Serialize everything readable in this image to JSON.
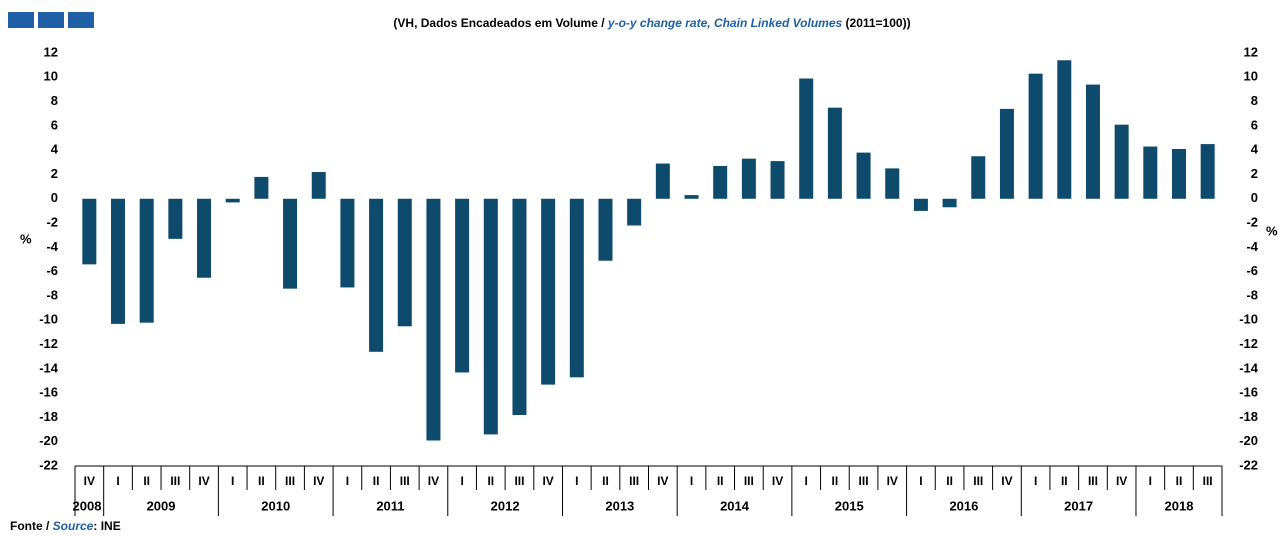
{
  "chart_data": {
    "type": "bar",
    "title": {
      "part1": "(VH, Dados Encadeados em Volume / ",
      "part2": "y-o-y change rate, Chain Linked Volumes",
      "part3": " (2011=100))"
    },
    "y_label": "%",
    "source": {
      "part1": "Fonte / ",
      "part2": "Source",
      "part3": ": INE"
    },
    "categories": [
      "IV",
      "I",
      "II",
      "III",
      "IV",
      "I",
      "II",
      "III",
      "IV",
      "I",
      "II",
      "III",
      "IV",
      "I",
      "II",
      "III",
      "IV",
      "I",
      "II",
      "III",
      "IV",
      "I",
      "II",
      "III",
      "IV",
      "I",
      "II",
      "III",
      "IV",
      "I",
      "II",
      "III",
      "IV",
      "I",
      "II",
      "III",
      "IV",
      "I",
      "II",
      "III"
    ],
    "years": [
      "2008",
      "2009",
      "2010",
      "2011",
      "2012",
      "2013",
      "2014",
      "2015",
      "2016",
      "2017",
      "2018"
    ],
    "values": [
      -5.4,
      -10.3,
      -10.2,
      -3.3,
      -6.5,
      -0.3,
      1.8,
      -7.4,
      2.2,
      -7.3,
      -12.6,
      -10.5,
      -19.9,
      -14.3,
      -19.4,
      -17.8,
      -15.3,
      -14.7,
      -5.1,
      -2.2,
      2.9,
      0.3,
      2.7,
      3.3,
      3.1,
      9.9,
      7.5,
      3.8,
      2.5,
      -1.0,
      -0.7,
      3.5,
      7.4,
      10.3,
      11.4,
      9.4,
      6.1,
      4.3,
      4.1,
      4.5
    ],
    "color": "#0d4a6b",
    "ylim": [
      -22,
      12
    ],
    "yticks": [
      -22,
      -20,
      -18,
      -16,
      -14,
      -12,
      -10,
      -8,
      -6,
      -4,
      -2,
      0,
      2,
      4,
      6,
      8,
      10,
      12
    ]
  }
}
